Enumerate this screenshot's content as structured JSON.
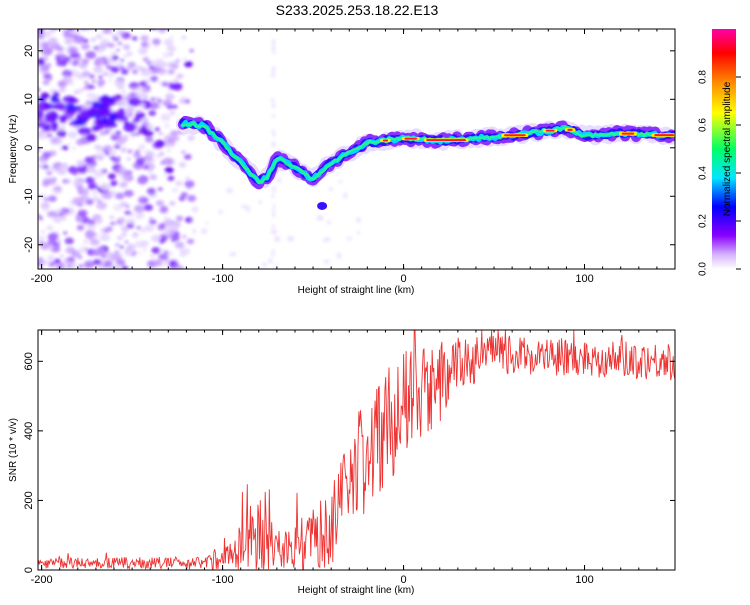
{
  "title": "S233.2025.253.18.22.E13",
  "chart_data": [
    {
      "type": "heatmap",
      "xlabel": "Height of straight line (km)",
      "ylabel": "Frequency (Hz)",
      "xlim": [
        -202,
        150
      ],
      "ylim": [
        -25,
        24.5
      ],
      "xticks": [
        -200,
        -100,
        0,
        100
      ],
      "yticks": [
        20,
        10,
        0,
        -10,
        -20
      ],
      "colorbar": {
        "label": "Normalized spectral amplitude",
        "range": [
          0,
          1
        ],
        "ticks": [
          "0.0",
          "0.2",
          "0.4",
          "0.6",
          "0.8"
        ],
        "tick_values": [
          0,
          0.2,
          0.4,
          0.6,
          0.8
        ],
        "colors": [
          "#ffffff",
          "#cc99ff",
          "#8800ff",
          "#0000ff",
          "#00e5ff",
          "#00ff66",
          "#ffff00",
          "#ff8800",
          "#ff0000",
          "#ff00aa"
        ]
      },
      "ridge": [
        {
          "x": -120,
          "y": 5
        },
        {
          "x": -110,
          "y": 4.5
        },
        {
          "x": -100,
          "y": 1
        },
        {
          "x": -90,
          "y": -3
        },
        {
          "x": -80,
          "y": -7
        },
        {
          "x": -75,
          "y": -6
        },
        {
          "x": -70,
          "y": -2
        },
        {
          "x": -60,
          "y": -4
        },
        {
          "x": -50,
          "y": -6.5
        },
        {
          "x": -40,
          "y": -3
        },
        {
          "x": -30,
          "y": -1
        },
        {
          "x": -20,
          "y": 1
        },
        {
          "x": -10,
          "y": 1.5
        },
        {
          "x": 0,
          "y": 2
        },
        {
          "x": 20,
          "y": 1.5
        },
        {
          "x": 40,
          "y": 2
        },
        {
          "x": 60,
          "y": 2.5
        },
        {
          "x": 80,
          "y": 3.5
        },
        {
          "x": 90,
          "y": 4
        },
        {
          "x": 100,
          "y": 2.5
        },
        {
          "x": 120,
          "y": 3
        },
        {
          "x": 150,
          "y": 2.5
        }
      ]
    },
    {
      "type": "line",
      "xlabel": "Height of straight line (km)",
      "ylabel": "SNR (10 * v/v)",
      "xlim": [
        -202,
        150
      ],
      "ylim": [
        0,
        690
      ],
      "xticks": [
        -200,
        -100,
        0,
        100
      ],
      "yticks": [
        0,
        200,
        400,
        600
      ],
      "color": "#ee3333",
      "envelope": [
        {
          "x": -202,
          "mean": 20,
          "amp": 15
        },
        {
          "x": -110,
          "mean": 20,
          "amp": 18
        },
        {
          "x": -95,
          "mean": 45,
          "amp": 45
        },
        {
          "x": -80,
          "mean": 110,
          "amp": 120
        },
        {
          "x": -70,
          "mean": 60,
          "amp": 60
        },
        {
          "x": -55,
          "mean": 75,
          "amp": 80
        },
        {
          "x": -40,
          "mean": 120,
          "amp": 110
        },
        {
          "x": -30,
          "mean": 230,
          "amp": 180
        },
        {
          "x": -20,
          "mean": 340,
          "amp": 180
        },
        {
          "x": -10,
          "mean": 410,
          "amp": 170
        },
        {
          "x": 0,
          "mean": 470,
          "amp": 160
        },
        {
          "x": 15,
          "mean": 510,
          "amp": 130
        },
        {
          "x": 30,
          "mean": 590,
          "amp": 80
        },
        {
          "x": 50,
          "mean": 620,
          "amp": 55
        },
        {
          "x": 100,
          "mean": 610,
          "amp": 55
        },
        {
          "x": 150,
          "mean": 600,
          "amp": 55
        }
      ]
    }
  ]
}
